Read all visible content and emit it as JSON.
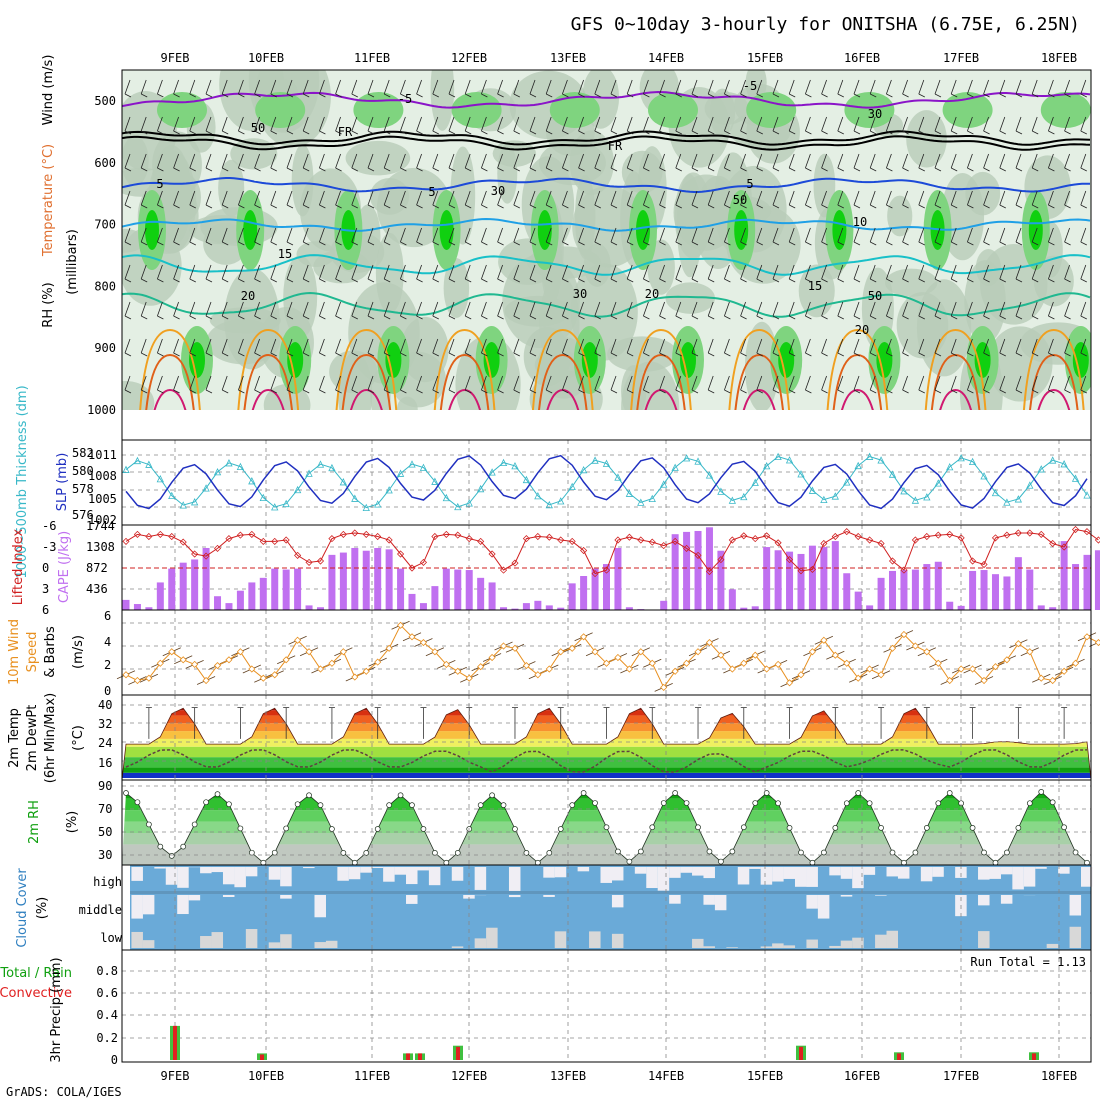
{
  "title": "GFS 0~10day 3-hourly for ONITSHA (6.75E, 6.25N)",
  "footer": "GrADS: COLA/IGES",
  "dates": [
    "9FEB",
    "10FEB",
    "11FEB",
    "12FEB",
    "13FEB",
    "14FEB",
    "15FEB",
    "16FEB",
    "17FEB",
    "18FEB"
  ],
  "panels": {
    "upper": {
      "ylabel": "(millibars)",
      "ylabel_parts": [
        "RH (%)",
        "Temperature (°C)",
        "Wind (m/s)"
      ],
      "levels": [
        500,
        600,
        700,
        800,
        900,
        1000
      ],
      "contour_labels": [
        "-5",
        "-5",
        "FR",
        "FR",
        "5",
        "5",
        "5",
        "10",
        "15",
        "15",
        "20",
        "20",
        "50",
        "30",
        "30",
        "30",
        "50",
        "50",
        "20"
      ],
      "colors": {
        "rh_low": "#e4efe4",
        "rh_mid": "#b8ccb8",
        "rh_high": "#7fd47f",
        "rh_sat": "#10d010",
        "t_minus5": "#8a14c8",
        "t_fr": "#000000",
        "t_5": "#1c4ad8",
        "t_10": "#1fa0e6",
        "t_15": "#18c0c8",
        "t_20": "#20b890",
        "t_25": "#f0a020",
        "t_30": "#e06018",
        "t_35": "#d01870"
      }
    },
    "sfc": {
      "ylabel_left": "1000~500mb Thickness (dm)",
      "ylabel_right": "SLP (mb)",
      "thickness_ticks": [
        "582",
        "580",
        "578",
        "576"
      ],
      "slp_ticks": [
        "1011",
        "1008",
        "1005",
        "1002"
      ],
      "colors": {
        "thickness": "#38b8c8",
        "slp": "#2030c0"
      }
    },
    "cape": {
      "ylabel_left": "Lifted Index",
      "ylabel_right": "CAPE (J/kg)",
      "li_ticks": [
        "-6",
        "-3",
        "0",
        "3",
        "6"
      ],
      "cape_ticks": [
        "1744",
        "1308",
        "872",
        "436"
      ],
      "colors": {
        "li": "#d02020",
        "cape": "#c070f0"
      }
    },
    "wind10": {
      "ylabel": [
        "10m Wind",
        "Speed",
        "& Barbs",
        "(m/s)"
      ],
      "ticks": [
        "6",
        "4",
        "2",
        "0"
      ],
      "colors": {
        "speed": "#e89020"
      }
    },
    "temp2m": {
      "ylabel": [
        "2m Temp",
        "2m DewPt",
        "(6hr Min/Max)",
        "(°C)"
      ],
      "ticks": [
        "40",
        "32",
        "24",
        "16"
      ],
      "bands": [
        "#1030c8",
        "#10a010",
        "#40c040",
        "#a0e040",
        "#f0f060",
        "#f8c040",
        "#f89030",
        "#f06020",
        "#d83010",
        "#a00808"
      ]
    },
    "rh2m": {
      "ylabel": [
        "2m RH",
        "(%)"
      ],
      "ticks": [
        "90",
        "70",
        "50",
        "30"
      ]
    },
    "cloud": {
      "ylabel": [
        "Cloud Cover",
        "(%)"
      ],
      "rows": [
        "high",
        "middle",
        "low"
      ],
      "colors": {
        "sky": "#6aaad8",
        "cloud": "#f0eef4",
        "low": "#d8d8d8"
      }
    },
    "precip": {
      "ylabel": [
        "Total / Rain",
        "Convective",
        "3hr Precip (mm)"
      ],
      "ticks": [
        "0.8",
        "0.6",
        "0.4",
        "0.2",
        "0"
      ],
      "run_total": "Run Total = 1.13",
      "colors": {
        "total": "#40c040",
        "conv": "#e02020"
      }
    }
  },
  "chart_data": [
    {
      "type": "line",
      "title": "1000~500mb Thickness (dm)",
      "x": [
        "9FEB",
        "10FEB",
        "11FEB",
        "12FEB",
        "13FEB",
        "14FEB",
        "15FEB",
        "16FEB",
        "17FEB",
        "18FEB"
      ],
      "series": [
        {
          "name": "thickness",
          "values": [
            580,
            580.7,
            581.5,
            581,
            580.8,
            579.8,
            580.5,
            580.8,
            581.2,
            580.9
          ]
        },
        {
          "name": "SLP",
          "values": [
            1007,
            1006.5,
            1005.5,
            1007.2,
            1006.8,
            1008.5,
            1008.2,
            1008.6,
            1009.3,
            1007.5
          ]
        }
      ]
    },
    {
      "type": "bar",
      "title": "CAPE (J/kg)",
      "values": [
        220,
        130,
        60,
        600,
        900,
        1030,
        1100,
        1350,
        300,
        150,
        420,
        600,
        700,
        900,
        880,
        900,
        100,
        60,
        1200,
        1250,
        1350,
        1290,
        1350,
        1320,
        900,
        350,
        150,
        520,
        900,
        880,
        870,
        700,
        600,
        60,
        30,
        150,
        200,
        100,
        50,
        580,
        740,
        900,
        1000,
        1350,
        60,
        20,
        0,
        200,
        1650,
        1700,
        1720,
        1800,
        1290,
        450,
        50,
        80,
        1370,
        1300,
        1270,
        1220,
        1400,
        1370,
        1500,
        800,
        400,
        100,
        700,
        850,
        870,
        880,
        1000,
        1050,
        180,
        90,
        850,
        870,
        780,
        730,
        1150,
        880,
        100,
        60,
        1500,
        1000,
        1200,
        1300
      ],
      "li_values": [
        -3.8,
        -4.8,
        -4.5,
        -4.8,
        -4.5,
        -3.7,
        -2.0,
        -1.7,
        -2.8,
        -4.2,
        -4.7,
        -4.8,
        -3.8,
        -3.8,
        -4.0,
        -1.8,
        -0.8,
        -1.0,
        -4.2,
        -4.8,
        -5.0,
        -4.8,
        -4.5,
        -4.0,
        -2.0,
        0.0,
        -0.8,
        -4.5,
        -4.8,
        -4.7,
        -4.2,
        -3.8,
        -2.0,
        0.3,
        -0.7,
        -4.2,
        -4.5,
        -4.4,
        -4.0,
        -3.8,
        -2.5,
        0.8,
        0.3,
        -4.0,
        -4.4,
        -4.0,
        -3.7,
        -3.2,
        -3.8,
        -2.8,
        -1.8,
        0.5,
        -1.2,
        -4.0,
        -4.6,
        -4.2,
        -4.6,
        -3.6,
        -1.2,
        0.4,
        0.2,
        -3.5,
        -4.5,
        -5.2,
        -4.5,
        -4.0,
        -3.5,
        -1.0,
        0.3,
        -4.0,
        -4.5,
        -4.7,
        -4.8,
        -4.3,
        -1.0,
        -0.5,
        -4.3,
        -4.7,
        -5.0,
        -5.0,
        -4.8,
        -3.5,
        -3.0,
        -5.5,
        -5.2,
        -4.0
      ]
    },
    {
      "type": "line",
      "title": "10m Wind Speed (m/s)",
      "values": [
        1.5,
        1.0,
        1.2,
        2.5,
        3.5,
        2.8,
        2.4,
        1.0,
        2.3,
        2.8,
        3.5,
        2.0,
        1.2,
        1.5,
        2.8,
        4.5,
        3.5,
        2.0,
        2.5,
        3.5,
        1.3,
        1.8,
        2.6,
        3.8,
        5.8,
        4.8,
        4.3,
        3.5,
        2.4,
        1.8,
        1.2,
        2.2,
        3.0,
        4.0,
        3.8,
        2.3,
        1.5,
        2.0,
        3.5,
        3.8,
        4.8,
        3.5,
        2.5,
        3.0,
        2.0,
        3.5,
        2.5,
        0.4,
        1.8,
        2.5,
        3.5,
        4.3,
        3.2,
        2.0,
        2.5,
        3.2,
        2.0,
        2.4,
        0.8,
        1.5,
        3.5,
        4.5,
        3.2,
        2.5,
        1.2,
        2.0,
        1.5,
        3.8,
        5.0,
        4.0,
        3.5,
        2.5,
        1.0,
        2.0,
        2.0,
        1.0,
        2.2,
        2.8,
        4.2,
        3.5,
        1.2,
        1.0,
        1.8,
        2.5,
        4.8,
        4.3,
        3.0,
        1.0,
        2.0
      ]
    },
    {
      "type": "area",
      "title": "2m Temp (°C)",
      "ylim": [
        12,
        41
      ],
      "days": [
        "9FEB",
        "10FEB",
        "11FEB",
        "12FEB",
        "13FEB",
        "14FEB",
        "15FEB",
        "16FEB",
        "17FEB",
        "18FEB"
      ],
      "tmax": [
        39,
        39,
        39,
        39,
        38.5,
        39,
        39,
        37,
        38,
        39,
        26
      ],
      "tmin": [
        25,
        25,
        25,
        25,
        25,
        25,
        25,
        25,
        25,
        25,
        25
      ],
      "dewpoint_day": [
        23,
        23,
        23,
        22.5,
        22.5,
        22.5,
        21.5,
        22.5,
        23,
        23,
        23
      ],
      "dewpoint_night": [
        16,
        16,
        16,
        16,
        14,
        14,
        14,
        16,
        17,
        16
      ]
    },
    {
      "type": "area",
      "title": "2m RH (%)",
      "ylim": [
        22,
        92
      ],
      "rh_max": [
        85,
        84,
        83,
        83,
        83,
        85,
        85,
        85,
        85,
        85,
        86
      ],
      "rh_min": [
        30,
        24,
        24,
        24,
        24,
        25,
        25,
        24,
        24,
        24,
        24
      ]
    },
    {
      "type": "bar",
      "title": "3hr Precip (mm)",
      "ylim": [
        0,
        1.0
      ],
      "bars": [
        {
          "day": "9FEB",
          "total": 0.31,
          "conv": 0.31
        },
        {
          "day": "10FEB",
          "total": 0.06,
          "conv": 0.05
        },
        {
          "day": "11FEB+",
          "total": 0.06,
          "conv": 0.06
        },
        {
          "day": "11FEB++",
          "total": 0.06,
          "conv": 0.06
        },
        {
          "day": "12FEB",
          "total": 0.13,
          "conv": 0.12
        },
        {
          "day": "15FEB",
          "total": 0.13,
          "conv": 0.12
        },
        {
          "day": "16FEB",
          "total": 0.07,
          "conv": 0.06
        },
        {
          "day": "18FEB",
          "total": 0.07,
          "conv": 0.06
        }
      ]
    }
  ]
}
